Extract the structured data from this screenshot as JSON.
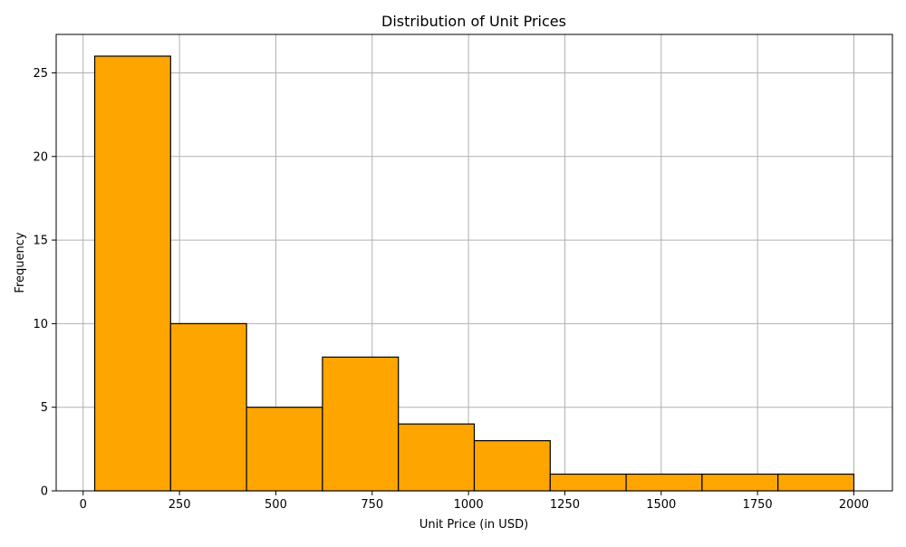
{
  "chart_data": {
    "type": "bar",
    "title": "Distribution of Unit Prices",
    "xlabel": "Unit Price (in USD)",
    "ylabel": "Frequency",
    "bin_edges": [
      30,
      227,
      424,
      621,
      818,
      1015,
      1212,
      1409,
      1606,
      1803,
      2000
    ],
    "values": [
      26,
      10,
      5,
      8,
      4,
      3,
      1,
      1,
      1,
      1
    ],
    "xlim": [
      -70,
      2100
    ],
    "ylim": [
      0,
      27.3
    ],
    "x_ticks": [
      0,
      250,
      500,
      750,
      1000,
      1250,
      1500,
      1750,
      2000
    ],
    "y_ticks": [
      0,
      5,
      10,
      15,
      20,
      25
    ],
    "grid": true,
    "colors": {
      "bar_fill": "#ffa500",
      "bar_edge": "#000000",
      "grid": "#b0b0b0",
      "axis": "#000000"
    }
  }
}
